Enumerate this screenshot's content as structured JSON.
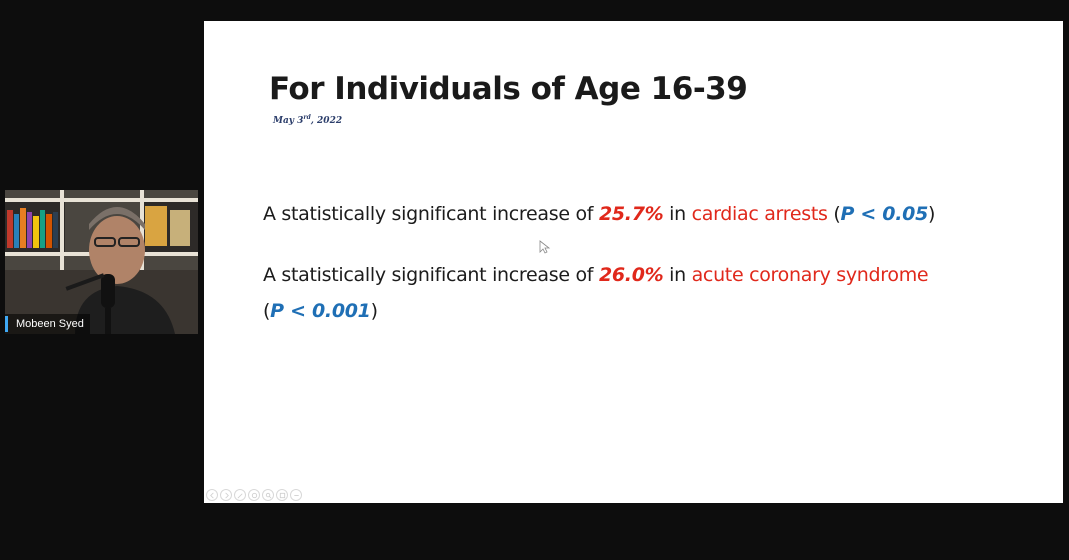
{
  "slide": {
    "title": "For Individuals of Age 16-39",
    "date_main": "May 3",
    "date_sup": "rd",
    "date_year": ", 2022",
    "line1": {
      "prefix": "A statistically significant increase of ",
      "percent": "25.7%",
      "mid": " in ",
      "condition": "cardiac arrests",
      "open": " (",
      "pvalue": "P < 0.05",
      "close": ")"
    },
    "line2": {
      "prefix": "A statistically significant increase of ",
      "percent": "26.0%",
      "mid": " in ",
      "condition": "acute coronary syndrome",
      "open": "(",
      "pvalue": "P < 0.001",
      "close": ")"
    }
  },
  "webcam": {
    "participant_name": "Mobeen Syed"
  },
  "colors": {
    "accent_red": "#e0281b",
    "accent_blue": "#1f6fb5",
    "name_bar": "#3fa9f5"
  },
  "controls": [
    "prev-icon",
    "next-icon",
    "pen-icon",
    "zoom-icon",
    "search-icon",
    "grid-icon",
    "more-icon"
  ]
}
